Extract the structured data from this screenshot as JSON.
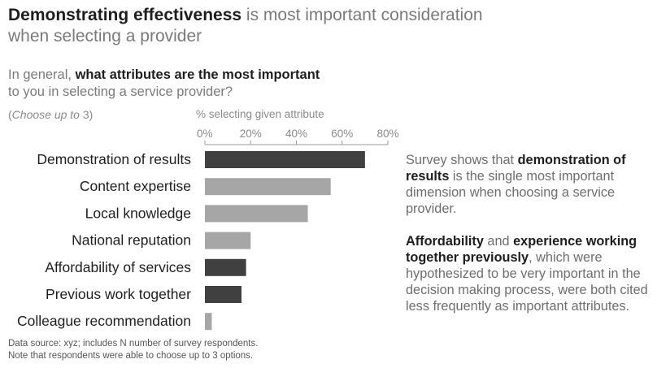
{
  "title": {
    "bold": "Demonstrating effectiveness",
    "rest_line1": " is most important consideration",
    "line2": "when selecting a provider"
  },
  "question": {
    "pre": "In general, ",
    "bold": "what attributes are the most important",
    "line2": "to you in selecting a service provider?"
  },
  "choose_note": {
    "open": "(",
    "text": "Choose up to",
    "num": " 3)"
  },
  "axis_label": "% selecting given attribute",
  "colors": {
    "dark": "#404040",
    "light": "#a6a6a6",
    "axis": "#9a9a9a"
  },
  "chart_data": {
    "type": "bar",
    "orientation": "horizontal",
    "xlabel": "% selecting given attribute",
    "xlim": [
      0,
      80
    ],
    "ticks": [
      "0%",
      "20%",
      "40%",
      "60%",
      "80%"
    ],
    "tick_values": [
      0,
      20,
      40,
      60,
      80
    ],
    "categories": [
      "Demonstration of results",
      "Content expertise",
      "Local knowledge",
      "National reputation",
      "Affordability of services",
      "Previous work together",
      "Colleague recommendation"
    ],
    "values": [
      70,
      55,
      45,
      20,
      18,
      16,
      3
    ],
    "highlight": [
      true,
      false,
      false,
      false,
      true,
      true,
      false
    ]
  },
  "source": {
    "line1": "Data source: xyz; includes N number of survey respondents.",
    "line2": "Note that respondents were able to choose up to 3 options."
  },
  "takeaway": {
    "p1_pre": "Survey shows that ",
    "p1_bold": "demonstration of results",
    "p1_post": " is the single most important dimension when choosing a service provider.",
    "p2_bold1": "Affordability",
    "p2_and": " and ",
    "p2_bold2": "experience working together previously",
    "p2_post": ", which were hypothesized to be very important in the decision making process, were both cited less frequently as important attributes."
  }
}
